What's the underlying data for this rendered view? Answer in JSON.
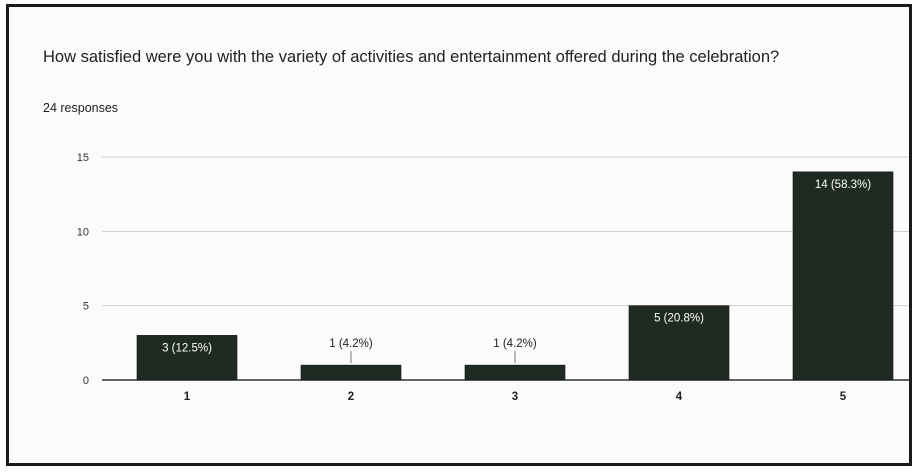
{
  "question": {
    "title": "How satisfied were you with the variety of activities and entertainment offered during the celebration?",
    "responses": "24 responses"
  },
  "colors": {
    "bar": "#1f2a22",
    "grid": "#cfcfcf",
    "axis": "#333333",
    "inner_label": "#ffffff",
    "outer_label": "#222222"
  },
  "chart_data": {
    "type": "bar",
    "title": "",
    "xlabel": "",
    "ylabel": "",
    "categories": [
      "1",
      "2",
      "3",
      "4",
      "5"
    ],
    "values": [
      3,
      1,
      1,
      5,
      14
    ],
    "data_labels": [
      "3 (12.5%)",
      "1 (4.2%)",
      "1 (4.2%)",
      "5 (20.8%)",
      "14 (58.3%)"
    ],
    "ylim": [
      0,
      15
    ],
    "yticks": [
      0,
      5,
      10,
      15
    ],
    "grid": true,
    "legend": "none"
  }
}
